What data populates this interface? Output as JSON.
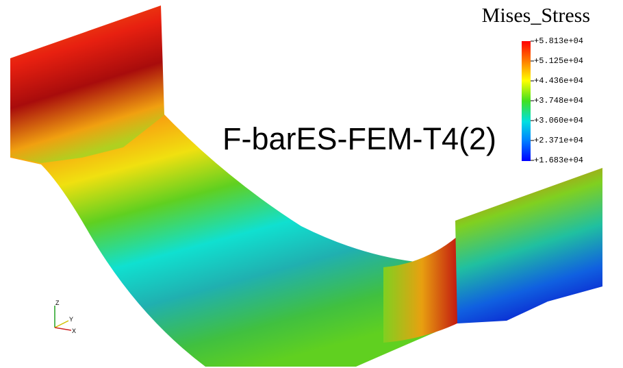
{
  "legend": {
    "title": "Mises_Stress",
    "labels": [
      "+5.813e+04",
      "+5.125e+04",
      "+4.436e+04",
      "+3.748e+04",
      "+3.060e+04",
      "+2.371e+04",
      "+1.683e+04"
    ]
  },
  "annotation": "F-barES-FEM-T4(2)",
  "triad": {
    "z": "Z",
    "y": "Y",
    "x": "X"
  }
}
